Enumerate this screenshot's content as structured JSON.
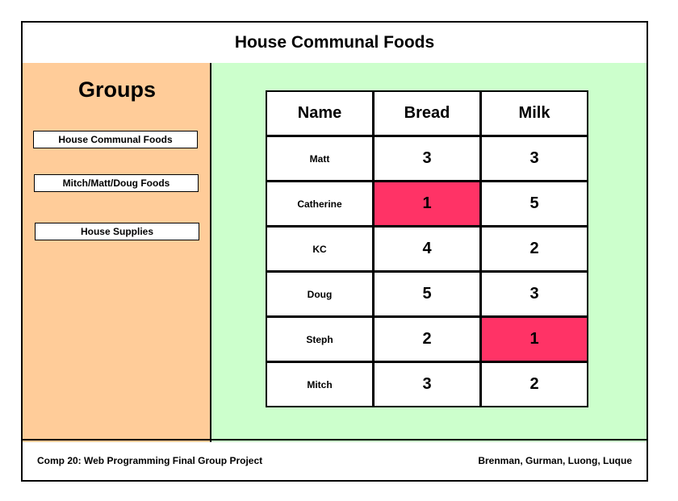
{
  "header": {
    "title": "House Communal Foods"
  },
  "sidebar": {
    "title": "Groups",
    "groups": [
      "House Communal Foods",
      "Mitch/Matt/Doug Foods",
      "House Supplies"
    ]
  },
  "table": {
    "columns": [
      "Name",
      "Bread",
      "Milk"
    ],
    "rows": [
      {
        "name": "Matt",
        "bread": "3",
        "milk": "3"
      },
      {
        "name": "Catherine",
        "bread": "1",
        "milk": "5"
      },
      {
        "name": "KC",
        "bread": "4",
        "milk": "2"
      },
      {
        "name": "Doug",
        "bread": "5",
        "milk": "3"
      },
      {
        "name": "Steph",
        "bread": "2",
        "milk": "1"
      },
      {
        "name": "Mitch",
        "bread": "3",
        "milk": "2"
      }
    ],
    "highlight_color": "#ff3366"
  },
  "footer": {
    "left": "Comp 20: Web Programming Final Group Project",
    "right": "Brenman, Gurman, Luong, Luque"
  },
  "colors": {
    "sidebar_bg": "#ffcc99",
    "main_bg": "#ccffcc"
  }
}
